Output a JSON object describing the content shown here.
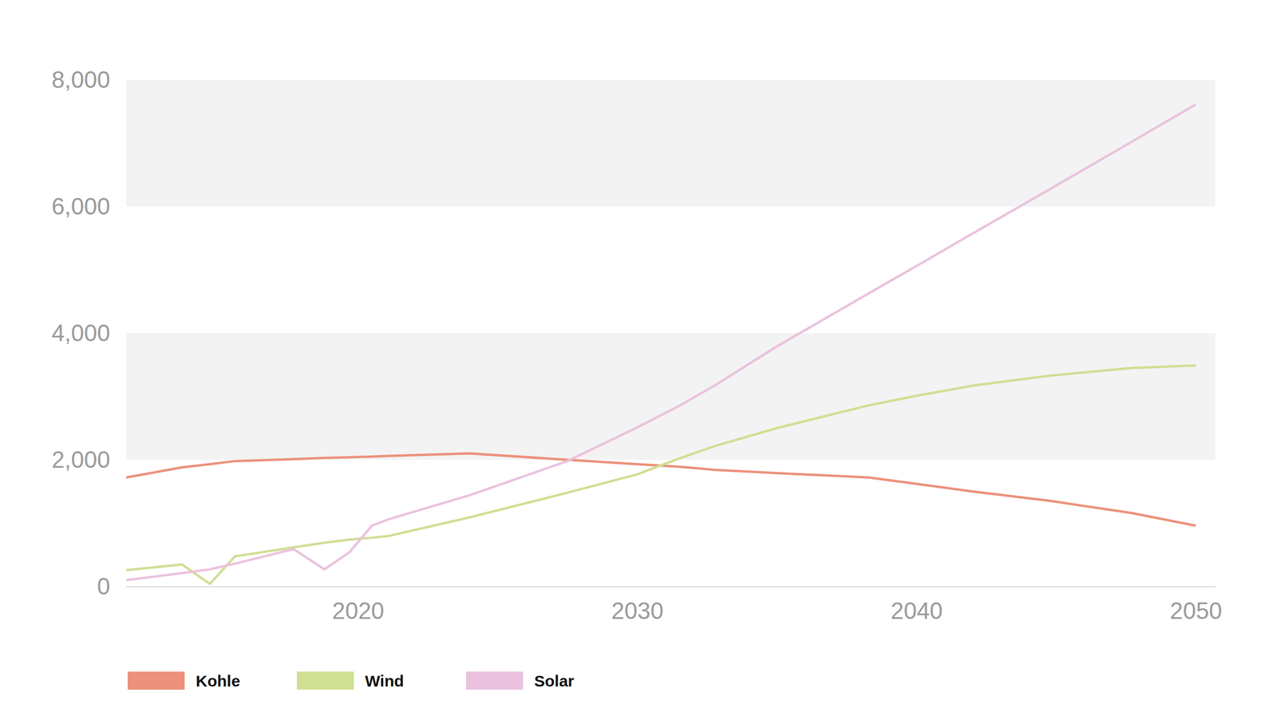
{
  "chart_data": {
    "type": "line",
    "x": [
      2011.7,
      2013.7,
      2014.7,
      2015.6,
      2017.7,
      2018.8,
      2019.7,
      2020.5,
      2021.1,
      2024,
      2027.5,
      2030,
      2031.5,
      2032.8,
      2035,
      2038.3,
      2040,
      2042,
      2044.8,
      2047.7,
      2050
    ],
    "series": [
      {
        "name": "Kohle",
        "color": "#ec917b",
        "values": [
          1720,
          1880,
          1930,
          1980,
          2010,
          2030,
          2040,
          2050,
          2060,
          2100,
          2000,
          1930,
          1890,
          1840,
          1790,
          1720,
          1620,
          1500,
          1350,
          1160,
          960
        ]
      },
      {
        "name": "Wind",
        "color": "#cfdf94",
        "values": [
          257,
          347,
          40,
          476,
          617,
          690,
          740,
          770,
          797,
          1090,
          1480,
          1770,
          2020,
          2220,
          2500,
          2860,
          3010,
          3170,
          3330,
          3450,
          3490
        ]
      },
      {
        "name": "Solar",
        "color": "#eac2de",
        "values": [
          100,
          210,
          270,
          360,
          590,
          270,
          540,
          960,
          1060,
          1440,
          1980,
          2510,
          2850,
          3180,
          3790,
          4630,
          5060,
          5570,
          6280,
          7020,
          7610
        ]
      }
    ],
    "xlim": [
      2011.7,
      2050.7
    ],
    "xticks": [
      2020,
      2030,
      2040,
      2050
    ],
    "ylim": [
      0,
      8000
    ],
    "yticks": [
      0,
      {
        "value": 2000,
        "label": "2,000"
      },
      {
        "value": 4000,
        "label": "4,000"
      },
      {
        "value": 6000,
        "label": "6,000"
      },
      {
        "value": 8000,
        "label": "8,000"
      }
    ],
    "grid": true,
    "legend": "bottom-left"
  }
}
